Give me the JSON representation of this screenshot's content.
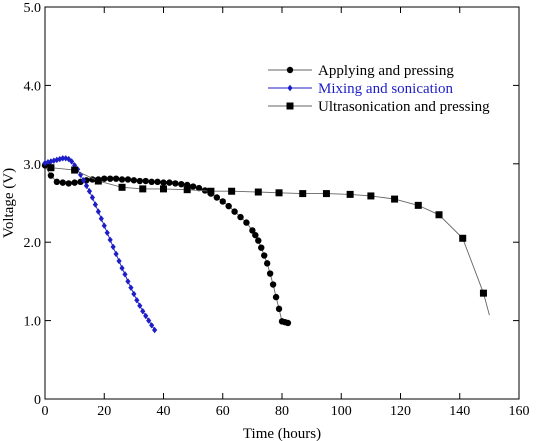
{
  "chart_data": {
    "type": "line",
    "title": "",
    "xlabel": "Time (hours)",
    "ylabel": "Voltage (V)",
    "xlim": [
      0,
      160
    ],
    "ylim": [
      0,
      5.0
    ],
    "xticks": [
      0,
      20,
      40,
      60,
      80,
      100,
      120,
      140,
      160
    ],
    "yticks": [
      0,
      1.0,
      2.0,
      3.0,
      4.0,
      5.0
    ],
    "xtick_labels": [
      "0",
      "20",
      "40",
      "60",
      "80",
      "100",
      "120",
      "140",
      "160"
    ],
    "ytick_labels": [
      "0",
      "1.0",
      "2.0",
      "3.0",
      "4.0",
      "5.0"
    ],
    "grid": false,
    "legend_position": "top-right",
    "series": [
      {
        "name": "Applying and pressing",
        "color": "#000000",
        "marker": "circle",
        "x": [
          0,
          2,
          4,
          6,
          8,
          10,
          12,
          14,
          16,
          18,
          20,
          22,
          24,
          26,
          28,
          30,
          32,
          34,
          36,
          38,
          40,
          42,
          44,
          46,
          48,
          50,
          52,
          54,
          56,
          58,
          60,
          62,
          64,
          66,
          68,
          70,
          71,
          72,
          73,
          74,
          75,
          76,
          77,
          78,
          79,
          80,
          81,
          82
        ],
        "y": [
          2.98,
          2.85,
          2.77,
          2.76,
          2.75,
          2.76,
          2.77,
          2.79,
          2.8,
          2.8,
          2.81,
          2.81,
          2.81,
          2.8,
          2.8,
          2.79,
          2.78,
          2.78,
          2.77,
          2.77,
          2.76,
          2.76,
          2.75,
          2.74,
          2.73,
          2.71,
          2.69,
          2.66,
          2.62,
          2.57,
          2.52,
          2.46,
          2.39,
          2.32,
          2.25,
          2.15,
          2.09,
          2.02,
          1.93,
          1.83,
          1.73,
          1.6,
          1.46,
          1.3,
          1.15,
          0.99,
          0.98,
          0.97
        ]
      },
      {
        "name": "Mixing and sonication",
        "color": "#1e1ec8",
        "marker": "diamond",
        "x": [
          0,
          1,
          2,
          3,
          4,
          5,
          6,
          7,
          8,
          9,
          10,
          11,
          12,
          13,
          14,
          15,
          16,
          17,
          18,
          19,
          20,
          21,
          22,
          23,
          24,
          25,
          26,
          27,
          28,
          29,
          30,
          31,
          32,
          33,
          34,
          35,
          36,
          37
        ],
        "y": [
          3.01,
          3.02,
          3.03,
          3.04,
          3.05,
          3.06,
          3.07,
          3.07,
          3.06,
          3.03,
          2.98,
          2.93,
          2.86,
          2.79,
          2.72,
          2.65,
          2.57,
          2.48,
          2.39,
          2.3,
          2.21,
          2.12,
          2.03,
          1.94,
          1.85,
          1.76,
          1.67,
          1.59,
          1.5,
          1.42,
          1.34,
          1.26,
          1.19,
          1.12,
          1.06,
          1.0,
          0.94,
          0.88
        ]
      },
      {
        "name": "Ultrasonication and pressing",
        "color": "#000000",
        "marker": "square",
        "x": [
          2,
          10,
          18,
          26,
          33,
          40,
          48,
          56,
          63,
          72,
          79,
          87,
          95,
          103,
          110,
          118,
          126,
          133,
          141,
          148
        ],
        "y": [
          2.95,
          2.92,
          2.78,
          2.7,
          2.68,
          2.68,
          2.67,
          2.65,
          2.65,
          2.64,
          2.63,
          2.62,
          2.62,
          2.61,
          2.59,
          2.55,
          2.47,
          2.35,
          2.05,
          1.35
        ]
      }
    ],
    "curve_tails": [
      {
        "series": "Ultrasonication and pressing",
        "x": [
          148,
          150
        ],
        "y": [
          1.35,
          1.07
        ]
      }
    ]
  }
}
